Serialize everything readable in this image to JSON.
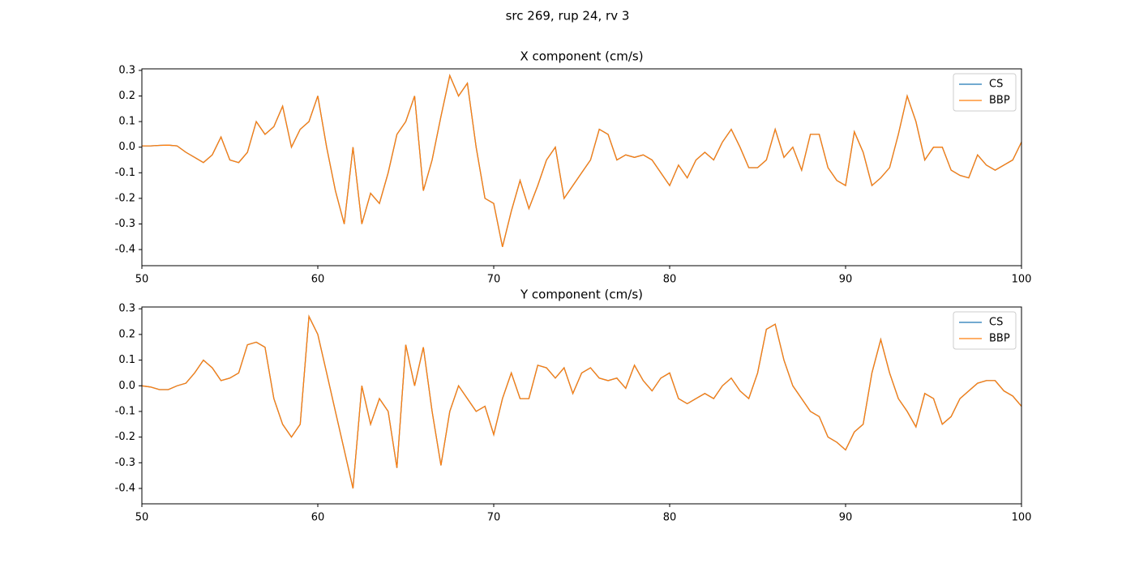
{
  "title": "src 269, rup 24, rv 3",
  "chart_data": [
    {
      "type": "line",
      "title": "X component (cm/s)",
      "x": [
        50,
        50.5,
        51,
        51.5,
        52,
        52.5,
        53,
        53.5,
        54,
        54.5,
        55,
        55.5,
        56,
        56.5,
        57,
        57.5,
        58,
        58.5,
        59,
        59.5,
        60,
        60.5,
        61,
        61.5,
        62,
        62.5,
        63,
        63.5,
        64,
        64.5,
        65,
        65.5,
        66,
        66.5,
        67,
        67.5,
        68,
        68.5,
        69,
        69.5,
        70,
        70.5,
        71,
        71.5,
        72,
        72.5,
        73,
        73.5,
        74,
        74.5,
        75,
        75.5,
        76,
        76.5,
        77,
        77.5,
        78,
        78.5,
        79,
        79.5,
        80,
        80.5,
        81,
        81.5,
        82,
        82.5,
        83,
        83.5,
        84,
        84.5,
        85,
        85.5,
        86,
        86.5,
        87,
        87.5,
        88,
        88.5,
        89,
        89.5,
        90,
        90.5,
        91,
        91.5,
        92,
        92.5,
        93,
        93.5,
        94,
        94.5,
        95,
        95.5,
        96,
        96.5,
        97,
        97.5,
        98,
        98.5,
        99,
        99.5,
        100
      ],
      "series": [
        {
          "name": "CS",
          "color": "#1f77b4",
          "values": [
            0.005,
            0.005,
            0.007,
            0.008,
            0.005,
            -0.02,
            -0.04,
            -0.06,
            -0.03,
            0.04,
            -0.05,
            -0.06,
            -0.02,
            0.1,
            0.05,
            0.08,
            0.16,
            0,
            0.07,
            0.1,
            0.2,
            0,
            -0.17,
            -0.3,
            0,
            -0.3,
            -0.18,
            -0.22,
            -0.1,
            0.05,
            0.1,
            0.2,
            -0.17,
            -0.05,
            0.12,
            0.28,
            0.2,
            0.25,
            0,
            -0.2,
            -0.22,
            -0.39,
            -0.25,
            -0.13,
            -0.24,
            -0.15,
            -0.05,
            0,
            -0.2,
            -0.15,
            -0.1,
            -0.05,
            0.07,
            0.05,
            -0.05,
            -0.03,
            -0.04,
            -0.03,
            -0.05,
            -0.1,
            -0.15,
            -0.07,
            -0.12,
            -0.05,
            -0.02,
            -0.05,
            0.02,
            0.07,
            0,
            -0.08,
            -0.08,
            -0.05,
            0.07,
            -0.04,
            0,
            -0.09,
            0.05,
            0.05,
            -0.08,
            -0.13,
            -0.15,
            0.06,
            -0.02,
            -0.15,
            -0.12,
            -0.08,
            0.05,
            0.2,
            0.1,
            -0.05,
            0,
            0,
            -0.09,
            -0.11,
            -0.12,
            -0.03,
            -0.07,
            -0.09,
            -0.07,
            -0.05,
            0.02
          ]
        },
        {
          "name": "BBP",
          "color": "#ff7f0e",
          "values": [
            0.005,
            0.005,
            0.007,
            0.008,
            0.005,
            -0.02,
            -0.04,
            -0.06,
            -0.03,
            0.04,
            -0.05,
            -0.06,
            -0.02,
            0.1,
            0.05,
            0.08,
            0.16,
            0,
            0.07,
            0.1,
            0.2,
            0,
            -0.17,
            -0.3,
            0,
            -0.3,
            -0.18,
            -0.22,
            -0.1,
            0.05,
            0.1,
            0.2,
            -0.17,
            -0.05,
            0.12,
            0.28,
            0.2,
            0.25,
            0,
            -0.2,
            -0.22,
            -0.39,
            -0.25,
            -0.13,
            -0.24,
            -0.15,
            -0.05,
            0,
            -0.2,
            -0.15,
            -0.1,
            -0.05,
            0.07,
            0.05,
            -0.05,
            -0.03,
            -0.04,
            -0.03,
            -0.05,
            -0.1,
            -0.15,
            -0.07,
            -0.12,
            -0.05,
            -0.02,
            -0.05,
            0.02,
            0.07,
            0,
            -0.08,
            -0.08,
            -0.05,
            0.07,
            -0.04,
            0,
            -0.09,
            0.05,
            0.05,
            -0.08,
            -0.13,
            -0.15,
            0.06,
            -0.02,
            -0.15,
            -0.12,
            -0.08,
            0.05,
            0.2,
            0.1,
            -0.05,
            0,
            0,
            -0.09,
            -0.11,
            -0.12,
            -0.03,
            -0.07,
            -0.09,
            -0.07,
            -0.05,
            0.02
          ]
        }
      ],
      "xlim": [
        50,
        100
      ],
      "xticks": [
        50,
        60,
        70,
        80,
        90,
        100
      ],
      "ylim": [
        -0.463,
        0.306
      ],
      "yticks": [
        -0.4,
        -0.3,
        -0.2,
        -0.1,
        {
          "value": 0,
          "label": "0.0"
        },
        0.1,
        0.2,
        0.3
      ],
      "legend": "upper right"
    },
    {
      "type": "line",
      "title": "Y component (cm/s)",
      "x": [
        50,
        50.5,
        51,
        51.5,
        52,
        52.5,
        53,
        53.5,
        54,
        54.5,
        55,
        55.5,
        56,
        56.5,
        57,
        57.5,
        58,
        58.5,
        59,
        59.5,
        60,
        60.5,
        61,
        61.5,
        62,
        62.5,
        63,
        63.5,
        64,
        64.5,
        65,
        65.5,
        66,
        66.5,
        67,
        67.5,
        68,
        68.5,
        69,
        69.5,
        70,
        70.5,
        71,
        71.5,
        72,
        72.5,
        73,
        73.5,
        74,
        74.5,
        75,
        75.5,
        76,
        76.5,
        77,
        77.5,
        78,
        78.5,
        79,
        79.5,
        80,
        80.5,
        81,
        81.5,
        82,
        82.5,
        83,
        83.5,
        84,
        84.5,
        85,
        85.5,
        86,
        86.5,
        87,
        87.5,
        88,
        88.5,
        89,
        89.5,
        90,
        90.5,
        91,
        91.5,
        92,
        92.5,
        93,
        93.5,
        94,
        94.5,
        95,
        95.5,
        96,
        96.5,
        97,
        97.5,
        98,
        98.5,
        99,
        99.5,
        100
      ],
      "series": [
        {
          "name": "CS",
          "color": "#1f77b4",
          "values": [
            0,
            -0.005,
            -0.015,
            -0.015,
            0,
            0.01,
            0.05,
            0.1,
            0.07,
            0.02,
            0.03,
            0.05,
            0.16,
            0.17,
            0.15,
            -0.05,
            -0.15,
            -0.2,
            -0.15,
            0.27,
            0.2,
            0.05,
            -0.1,
            -0.25,
            -0.4,
            0,
            -0.15,
            -0.05,
            -0.1,
            -0.32,
            0.16,
            0,
            0.15,
            -0.1,
            -0.31,
            -0.1,
            0,
            -0.05,
            -0.1,
            -0.08,
            -0.19,
            -0.05,
            0.05,
            -0.05,
            -0.05,
            0.08,
            0.07,
            0.03,
            0.07,
            -0.03,
            0.05,
            0.07,
            0.03,
            0.02,
            0.03,
            -0.01,
            0.08,
            0.02,
            -0.02,
            0.03,
            0.05,
            -0.05,
            -0.07,
            -0.05,
            -0.03,
            -0.05,
            0,
            0.03,
            -0.02,
            -0.05,
            0.05,
            0.22,
            0.24,
            0.1,
            0,
            -0.05,
            -0.1,
            -0.12,
            -0.2,
            -0.22,
            -0.25,
            -0.18,
            -0.15,
            0.05,
            0.18,
            0.05,
            -0.05,
            -0.1,
            -0.16,
            -0.03,
            -0.05,
            -0.15,
            -0.12,
            -0.05,
            -0.02,
            0.01,
            0.02,
            0.02,
            -0.02,
            -0.04,
            -0.08
          ]
        },
        {
          "name": "BBP",
          "color": "#ff7f0e",
          "values": [
            0,
            -0.005,
            -0.015,
            -0.015,
            0,
            0.01,
            0.05,
            0.1,
            0.07,
            0.02,
            0.03,
            0.05,
            0.16,
            0.17,
            0.15,
            -0.05,
            -0.15,
            -0.2,
            -0.15,
            0.27,
            0.2,
            0.05,
            -0.1,
            -0.25,
            -0.4,
            0,
            -0.15,
            -0.05,
            -0.1,
            -0.32,
            0.16,
            0,
            0.15,
            -0.1,
            -0.31,
            -0.1,
            0,
            -0.05,
            -0.1,
            -0.08,
            -0.19,
            -0.05,
            0.05,
            -0.05,
            -0.05,
            0.08,
            0.07,
            0.03,
            0.07,
            -0.03,
            0.05,
            0.07,
            0.03,
            0.02,
            0.03,
            -0.01,
            0.08,
            0.02,
            -0.02,
            0.03,
            0.05,
            -0.05,
            -0.07,
            -0.05,
            -0.03,
            -0.05,
            0,
            0.03,
            -0.02,
            -0.05,
            0.05,
            0.22,
            0.24,
            0.1,
            0,
            -0.05,
            -0.1,
            -0.12,
            -0.2,
            -0.22,
            -0.25,
            -0.18,
            -0.15,
            0.05,
            0.18,
            0.05,
            -0.05,
            -0.1,
            -0.16,
            -0.03,
            -0.05,
            -0.15,
            -0.12,
            -0.05,
            -0.02,
            0.01,
            0.02,
            0.02,
            -0.02,
            -0.04,
            -0.08
          ]
        }
      ],
      "xlim": [
        50,
        100
      ],
      "xticks": [
        50,
        60,
        70,
        80,
        90,
        100
      ],
      "ylim": [
        -0.46,
        0.307
      ],
      "yticks": [
        -0.4,
        -0.3,
        -0.2,
        -0.1,
        {
          "value": 0,
          "label": "0.0"
        },
        0.1,
        0.2,
        0.3
      ],
      "legend": "upper right"
    }
  ]
}
